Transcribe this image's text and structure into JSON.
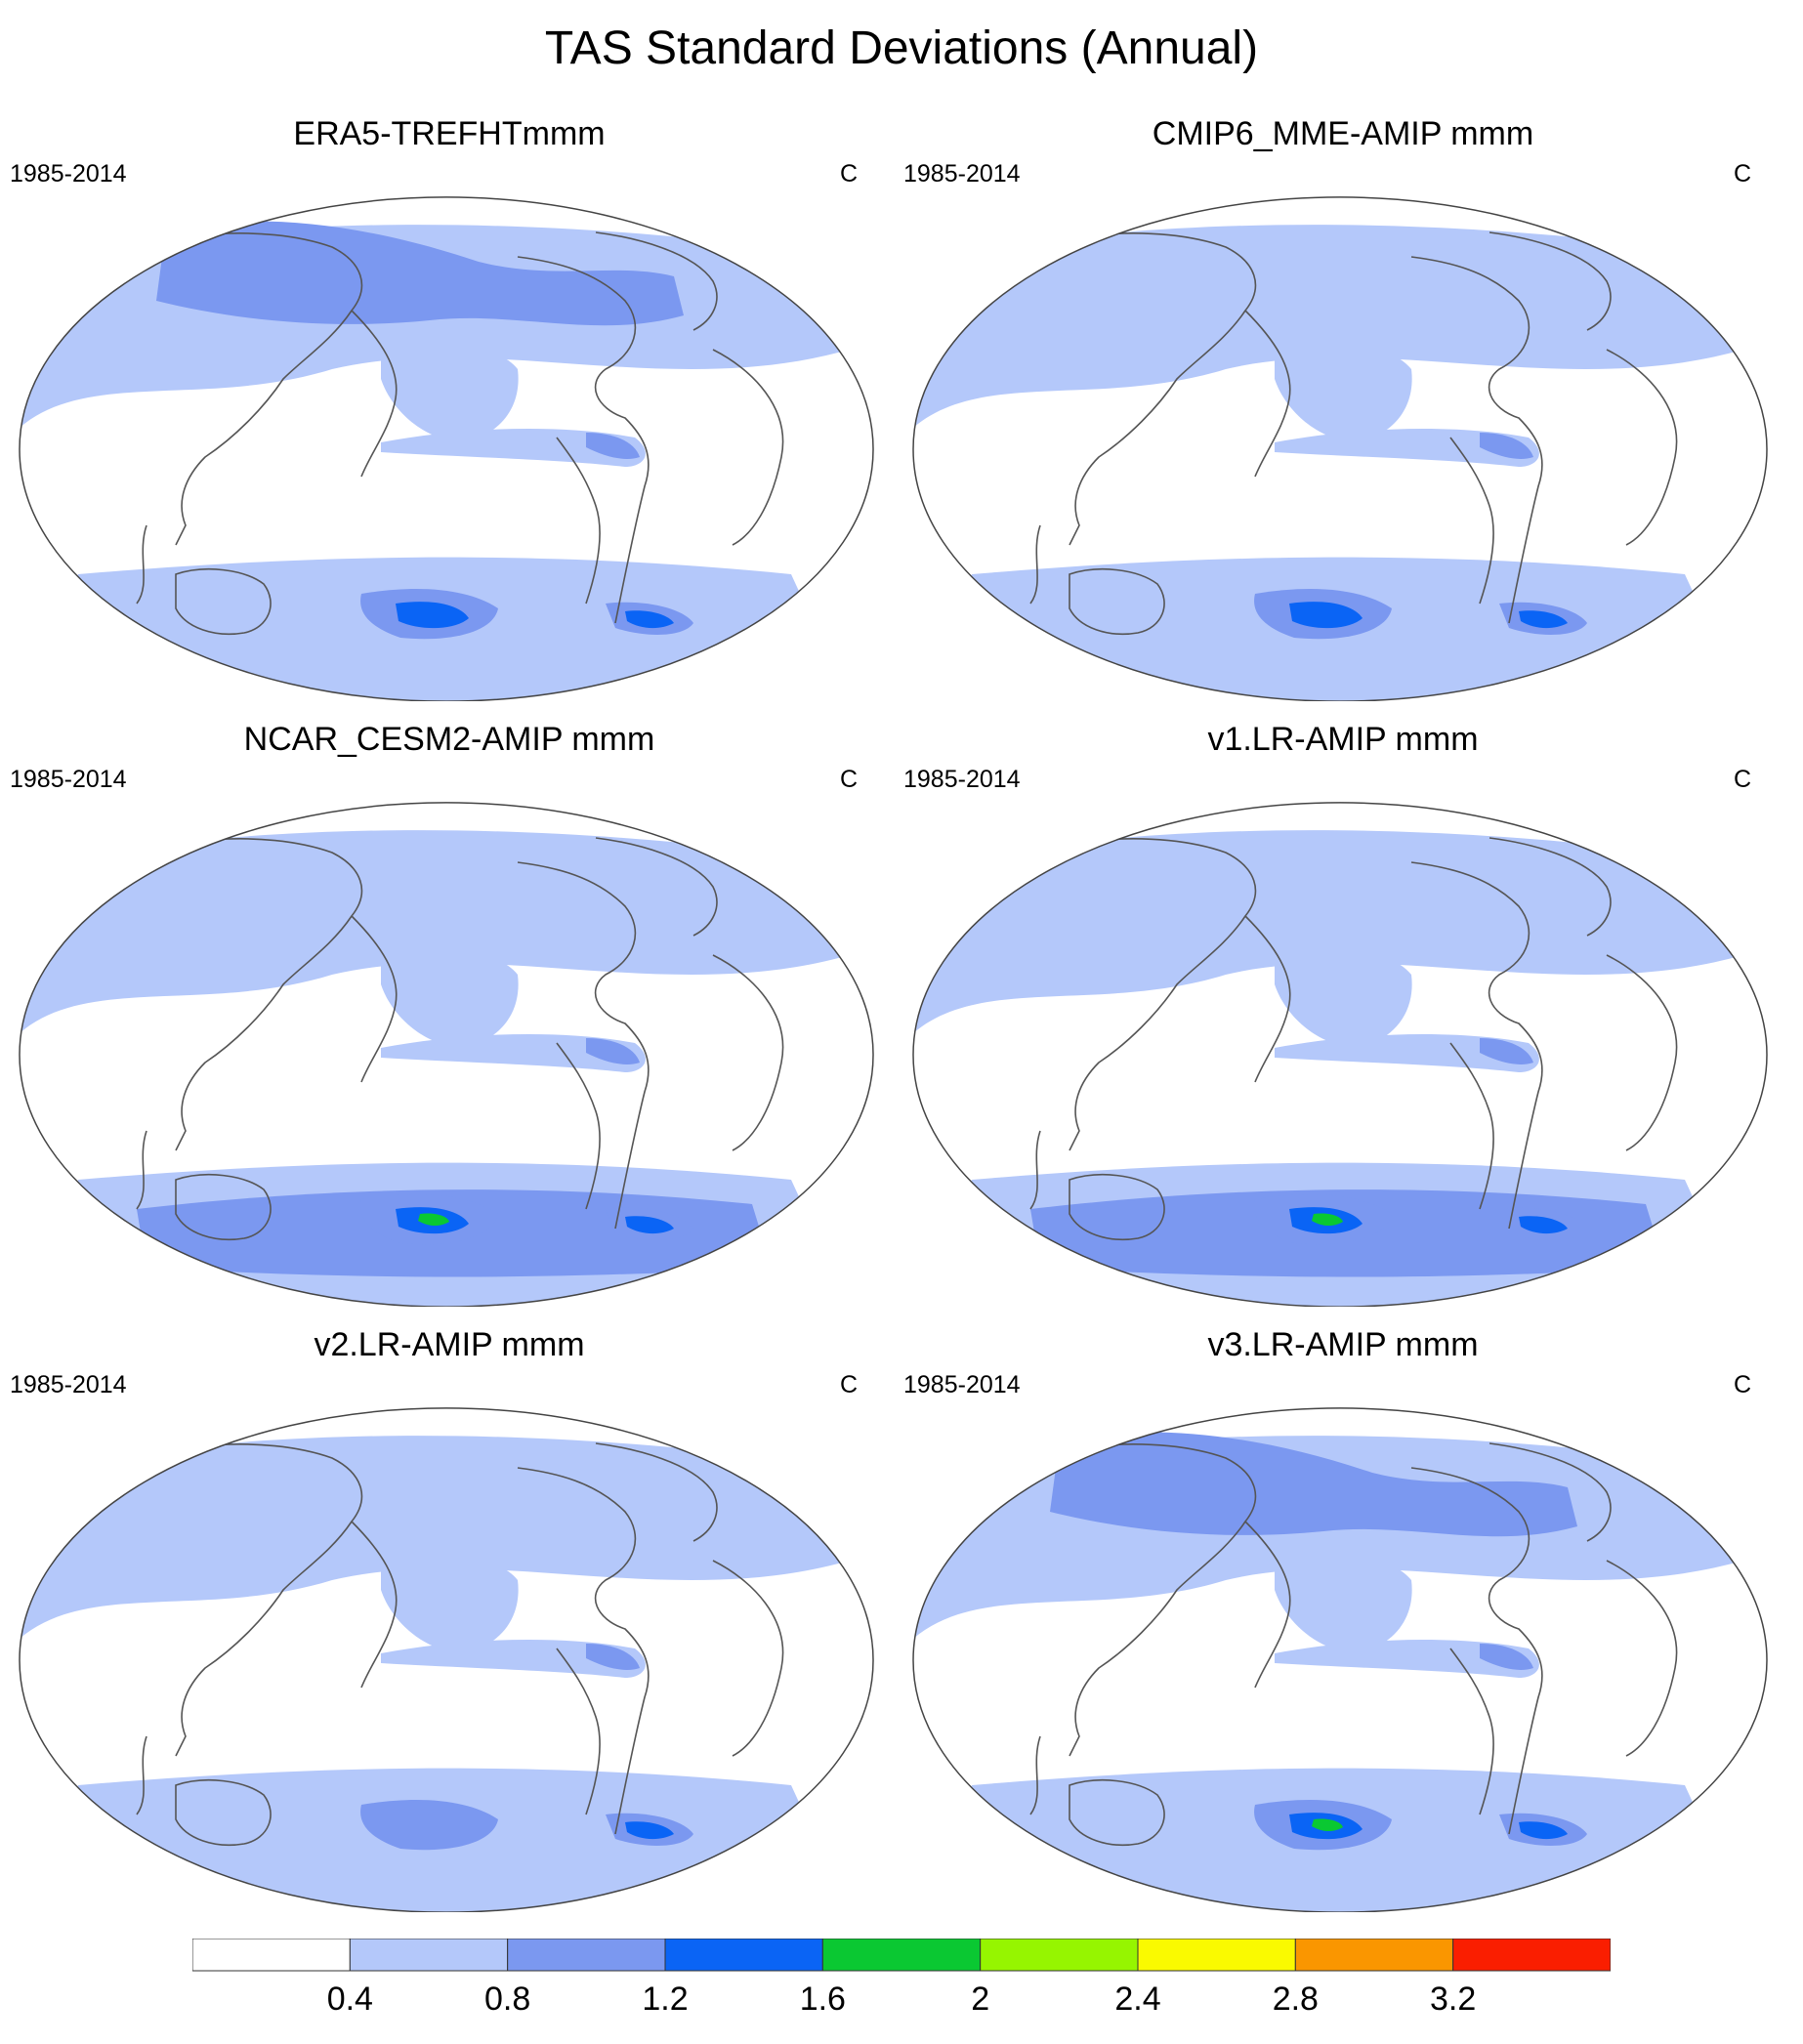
{
  "title": "TAS Standard Deviations (Annual)",
  "panels": [
    {
      "title": "ERA5-TREFHTmmm",
      "period": "1985-2014",
      "units": "C"
    },
    {
      "title": "CMIP6_MME-AMIP  mmm",
      "period": "1985-2014",
      "units": "C"
    },
    {
      "title": "NCAR_CESM2-AMIP  mmm",
      "period": "1985-2014",
      "units": "C"
    },
    {
      "title": "v1.LR-AMIP  mmm",
      "period": "1985-2014",
      "units": "C"
    },
    {
      "title": "v2.LR-AMIP  mmm",
      "period": "1985-2014",
      "units": "C"
    },
    {
      "title": "v3.LR-AMIP  mmm",
      "period": "1985-2014",
      "units": "C"
    }
  ],
  "colorbar": {
    "colors": [
      "#ffffff",
      "#b4c8fa",
      "#7b98f0",
      "#0a64f5",
      "#0ac832",
      "#96f500",
      "#fafa00",
      "#fa9600",
      "#fa1e00"
    ],
    "labels": [
      "0.4",
      "0.8",
      "1.2",
      "1.6",
      "2",
      "2.4",
      "2.8",
      "3.2"
    ]
  }
}
